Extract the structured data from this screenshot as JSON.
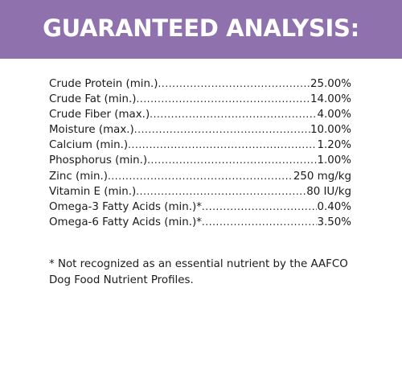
{
  "header": {
    "title": "GUARANTEED ANALYSIS:",
    "background_color": "#8f72ad",
    "text_color": "#ffffff"
  },
  "nutrients": [
    {
      "label": "Crude Protein (min.)",
      "value": "25.00%"
    },
    {
      "label": "Crude Fat (min.)",
      "value": "14.00%"
    },
    {
      "label": "Crude Fiber (max.)",
      "value": "4.00%"
    },
    {
      "label": "Moisture (max.)",
      "value": "10.00%"
    },
    {
      "label": "Calcium (min.)",
      "value": "1.20%"
    },
    {
      "label": "Phosphorus (min.)",
      "value": "1.00%"
    },
    {
      "label": "Zinc (min.)",
      "value": "250 mg/kg"
    },
    {
      "label": "Vitamin E (min.)",
      "value": "80 IU/kg"
    },
    {
      "label": "Omega-3 Fatty Acids (min.)*",
      "value": "0.40%"
    },
    {
      "label": "Omega-6 Fatty Acids (min.)*",
      "value": "3.50%"
    }
  ],
  "footnote": "* Not recognized as an essential nutrient by the AAFCO Dog Food Nutrient Profiles."
}
